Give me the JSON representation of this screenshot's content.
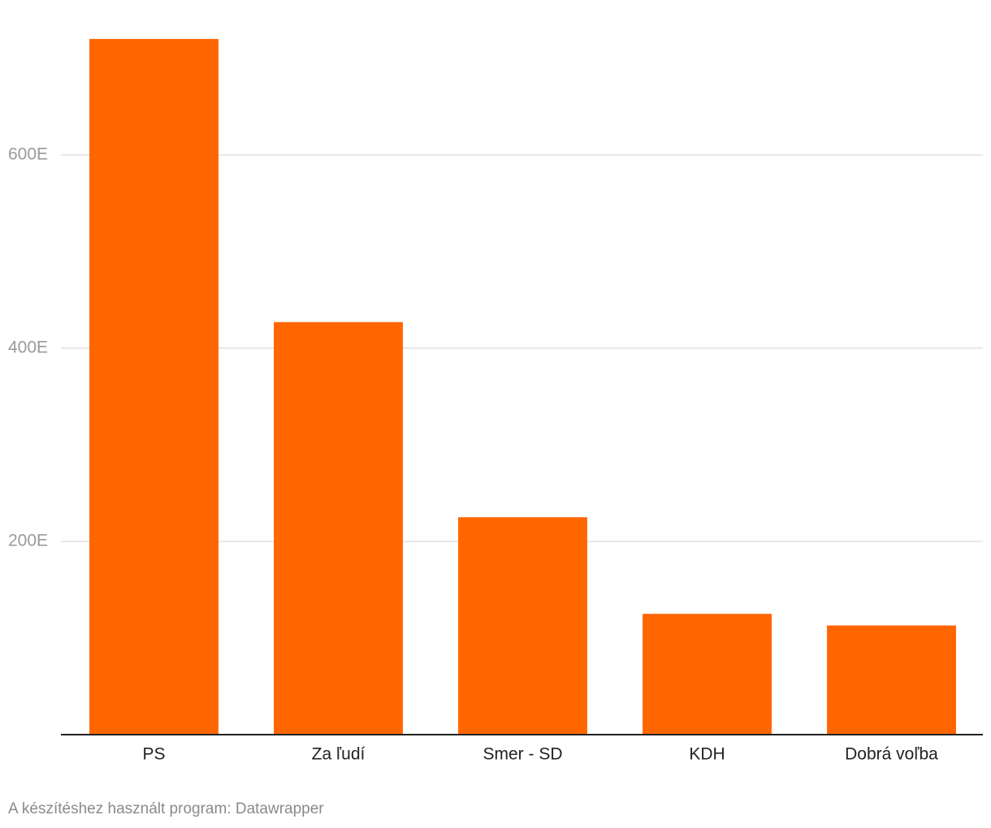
{
  "chart_data": {
    "type": "bar",
    "categories": [
      "PS",
      "Za ľudí",
      "Smer - SD",
      "KDH",
      "Dobrá voľba"
    ],
    "values": [
      720000,
      427000,
      225000,
      125000,
      113000
    ],
    "color": "#ff6600",
    "ylim": [
      0,
      720000
    ],
    "yticks": [
      {
        "value": 200000,
        "label": "200E"
      },
      {
        "value": 400000,
        "label": "400E"
      },
      {
        "value": 600000,
        "label": "600E"
      }
    ],
    "grid": true,
    "credit": "A készítéshez használt program: Datawrapper"
  }
}
